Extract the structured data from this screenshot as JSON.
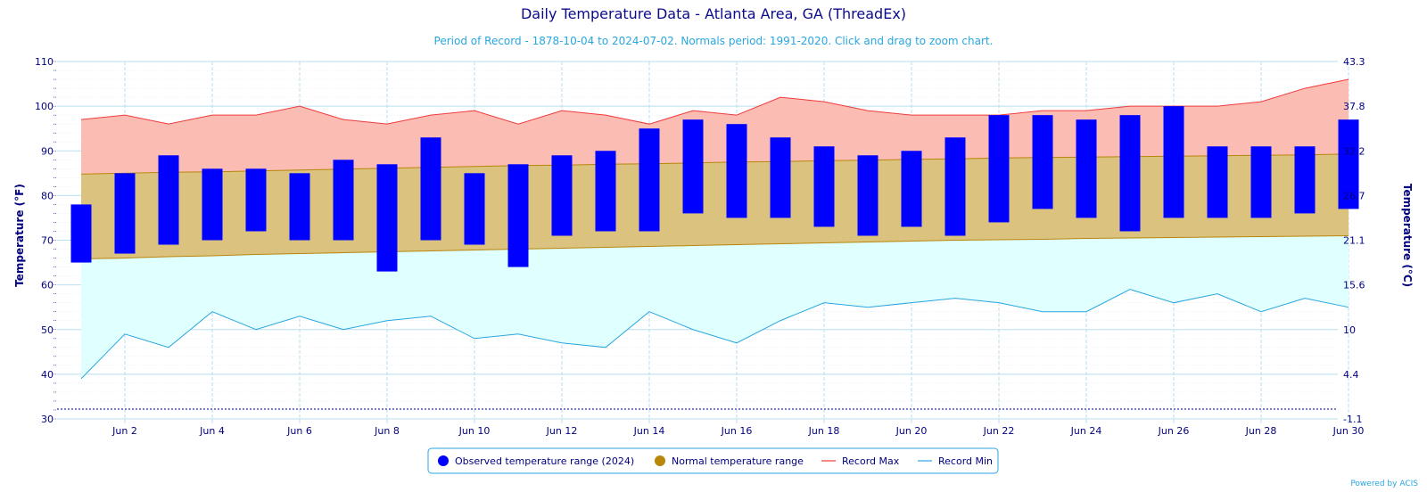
{
  "chart_data": {
    "type": "bar",
    "title": "Daily Temperature Data - Atlanta Area, GA (ThreadEx)",
    "subtitle": "Period of Record - 1878-10-04 to 2024-07-02. Normals period: 1991-2020. Click and drag to zoom chart.",
    "ylabel": "Temperature (°F)",
    "ylabel_right": "Temperature (°C)",
    "ylim": [
      30,
      110
    ],
    "yticks": [
      30,
      40,
      50,
      60,
      70,
      80,
      90,
      100,
      110
    ],
    "yticks_right": [
      "-1.1",
      "4.4",
      "10",
      "15.6",
      "21.1",
      "26.7",
      "32.2",
      "37.8",
      "43.3"
    ],
    "x_tick_labels": [
      "Jun 2",
      "Jun 4",
      "Jun 6",
      "Jun 8",
      "Jun 10",
      "Jun 12",
      "Jun 14",
      "Jun 16",
      "Jun 18",
      "Jun 20",
      "Jun 22",
      "Jun 24",
      "Jun 26",
      "Jun 28",
      "Jun 30"
    ],
    "x_tick_days": [
      2,
      4,
      6,
      8,
      10,
      12,
      14,
      16,
      18,
      20,
      22,
      24,
      26,
      28,
      30
    ],
    "days": [
      1,
      2,
      3,
      4,
      5,
      6,
      7,
      8,
      9,
      10,
      11,
      12,
      13,
      14,
      15,
      16,
      17,
      18,
      19,
      20,
      21,
      22,
      23,
      24,
      25,
      26,
      27,
      28,
      29,
      30
    ],
    "series": [
      {
        "name": "Observed temperature range (2024)",
        "color": "#0000ff",
        "low": [
          65,
          67,
          69,
          70,
          72,
          70,
          70,
          63,
          70,
          69,
          64,
          71,
          72,
          72,
          76,
          75,
          75,
          73,
          71,
          73,
          71,
          74,
          77,
          75,
          72,
          75,
          75,
          75,
          76,
          77
        ],
        "high": [
          78,
          85,
          89,
          86,
          86,
          85,
          88,
          87,
          93,
          85,
          87,
          89,
          90,
          95,
          97,
          96,
          93,
          91,
          89,
          90,
          93,
          98,
          98,
          97,
          98,
          100,
          91,
          91,
          91,
          97
        ]
      },
      {
        "name": "Normal temperature range",
        "color": "#b8860b",
        "low": [
          65.8,
          66.0,
          66.3,
          66.5,
          66.8,
          67.0,
          67.2,
          67.4,
          67.6,
          67.8,
          68.0,
          68.2,
          68.4,
          68.6,
          68.8,
          69.0,
          69.2,
          69.4,
          69.6,
          69.8,
          70.0,
          70.1,
          70.2,
          70.4,
          70.5,
          70.6,
          70.7,
          70.8,
          70.9,
          71.0
        ],
        "high": [
          84.8,
          85.0,
          85.2,
          85.3,
          85.5,
          85.7,
          85.9,
          86.1,
          86.3,
          86.5,
          86.7,
          86.8,
          87.0,
          87.1,
          87.3,
          87.5,
          87.6,
          87.8,
          87.9,
          88.1,
          88.2,
          88.4,
          88.5,
          88.6,
          88.7,
          88.8,
          88.9,
          89.0,
          89.1,
          89.3
        ]
      },
      {
        "name": "Record Max",
        "color": "#f03b3b",
        "values": [
          97,
          98,
          96,
          98,
          98,
          100,
          97,
          96,
          98,
          99,
          96,
          99,
          98,
          96,
          99,
          98,
          102,
          101,
          99,
          98,
          98,
          98,
          99,
          99,
          100,
          100,
          100,
          101,
          104,
          106
        ]
      },
      {
        "name": "Record Min",
        "color": "#29a6e0",
        "values": [
          39,
          49,
          46,
          54,
          50,
          53,
          50,
          52,
          53,
          48,
          49,
          47,
          46,
          54,
          50,
          47,
          52,
          56,
          55,
          56,
          57,
          56,
          54,
          54,
          59,
          56,
          58,
          54,
          57,
          55
        ]
      }
    ],
    "legend_position": "bottom-center",
    "grid": true
  },
  "credit": "Powered by ACIS"
}
